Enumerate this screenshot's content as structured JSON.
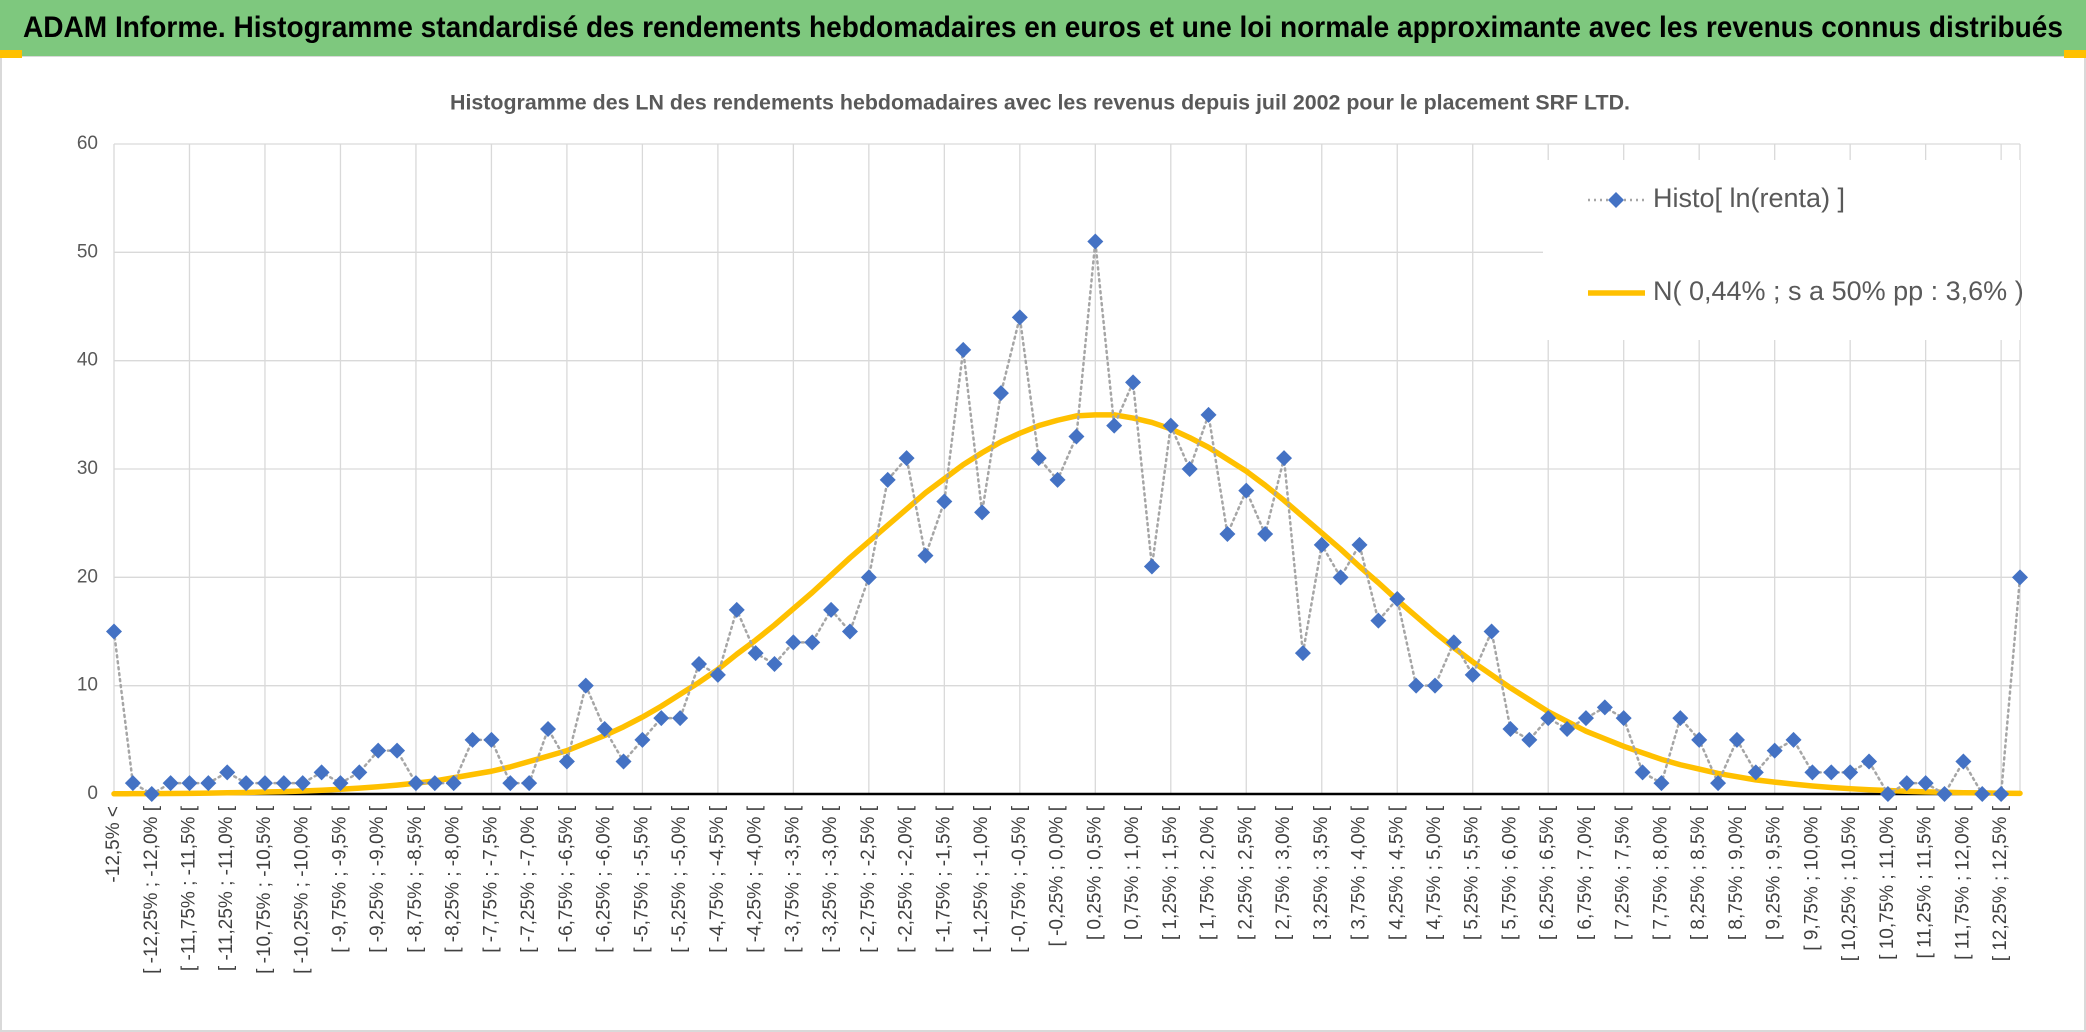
{
  "chart_data": {
    "type": "line",
    "header": "ADAM Informe. Histogramme standardisé des rendements hebdomadaires en euros et une loi normale approximante avec les revenus connus distribués",
    "title": "Histogramme des LN des rendements hebdomadaires avec les revenus depuis juil 2002 pour le placement SRF LTD.",
    "categories": [
      "-12,5% <",
      null,
      "[ -12,25% ; -12,0% [",
      null,
      "[ -11,75% ; -11,5% [",
      null,
      "[ -11,25% ; -11,0% [",
      null,
      "[ -10,75% ; -10,5% [",
      null,
      "[ -10,25% ; -10,0% [",
      null,
      "[ -9,75% ; -9,5% [",
      null,
      "[ -9,25% ; -9,0% [",
      null,
      "[ -8,75% ; -8,5% [",
      null,
      "[ -8,25% ; -8,0% [",
      null,
      "[ -7,75% ; -7,5% [",
      null,
      "[ -7,25% ; -7,0% [",
      null,
      "[ -6,75% ; -6,5% [",
      null,
      "[ -6,25% ; -6,0% [",
      null,
      "[ -5,75% ; -5,5% [",
      null,
      "[ -5,25% ; -5,0% [",
      null,
      "[ -4,75% ; -4,5% [",
      null,
      "[ -4,25% ; -4,0% [",
      null,
      "[ -3,75% ; -3,5% [",
      null,
      "[ -3,25% ; -3,0% [",
      null,
      "[ -2,75% ; -2,5% [",
      null,
      "[ -2,25% ; -2,0% [",
      null,
      "[ -1,75% ; -1,5% [",
      null,
      "[ -1,25% ; -1,0% [",
      null,
      "[ -0,75% ; -0,5% [",
      null,
      "[ -0,25% ; 0,0% [",
      null,
      "[ 0,25% ; 0,5% [",
      null,
      "[ 0,75% ; 1,0% [",
      null,
      "[ 1,25% ; 1,5% [",
      null,
      "[ 1,75% ; 2,0% [",
      null,
      "[ 2,25% ; 2,5% [",
      null,
      "[ 2,75% ; 3,0% [",
      null,
      "[ 3,25% ; 3,5% [",
      null,
      "[ 3,75% ; 4,0% [",
      null,
      "[ 4,25% ; 4,5% [",
      null,
      "[ 4,75% ; 5,0% [",
      null,
      "[ 5,25% ; 5,5% [",
      null,
      "[ 5,75% ; 6,0% [",
      null,
      "[ 6,25% ; 6,5% [",
      null,
      "[ 6,75% ; 7,0% [",
      null,
      "[ 7,25% ; 7,5% [",
      null,
      "[ 7,75% ; 8,0% [",
      null,
      "[ 8,25% ; 8,5% [",
      null,
      "[ 8,75% ; 9,0% [",
      null,
      "[ 9,25% ; 9,5% [",
      null,
      "[ 9,75% ; 10,0% [",
      null,
      "[ 10,25% ; 10,5% [",
      null,
      "[ 10,75% ; 11,0% [",
      null,
      "[ 11,25% ; 11,5% [",
      null,
      "[ 11,75% ; 12,0% [",
      null,
      "[ 12,25% ; 12,5% [",
      null
    ],
    "series": [
      {
        "name": "Histo[ ln(renta) ]",
        "color": "#4472c4",
        "line_color": "#a6a6a6",
        "dash": "dotted",
        "marker": "diamond",
        "values": [
          15,
          1,
          0,
          1,
          1,
          1,
          2,
          1,
          1,
          1,
          1,
          2,
          1,
          2,
          4,
          4,
          1,
          1,
          1,
          5,
          5,
          1,
          1,
          6,
          3,
          10,
          6,
          3,
          5,
          7,
          7,
          12,
          11,
          17,
          13,
          12,
          14,
          14,
          17,
          15,
          20,
          29,
          31,
          22,
          27,
          41,
          26,
          37,
          44,
          31,
          29,
          33,
          51,
          34,
          38,
          21,
          34,
          30,
          35,
          24,
          28,
          24,
          31,
          13,
          23,
          20,
          23,
          16,
          18,
          10,
          10,
          14,
          11,
          15,
          6,
          5,
          7,
          6,
          7,
          8,
          7,
          2,
          1,
          7,
          5,
          1,
          5,
          2,
          4,
          5,
          2,
          2,
          2,
          3,
          0,
          1,
          1,
          0,
          3,
          0,
          0,
          20
        ]
      },
      {
        "name": "N( 0,44% ; s a 50% pp : 3,6% )",
        "color": "#ffc000",
        "values": [
          0.02,
          0.03,
          0.04,
          0.05,
          0.06,
          0.08,
          0.11,
          0.14,
          0.18,
          0.22,
          0.28,
          0.35,
          0.44,
          0.54,
          0.67,
          0.82,
          1.0,
          1.2,
          1.5,
          1.8,
          2.1,
          2.5,
          3.0,
          3.5,
          4.0,
          4.7,
          5.4,
          6.2,
          7.1,
          8.1,
          9.2,
          10.3,
          11.5,
          12.9,
          14.2,
          15.6,
          17.1,
          18.6,
          20.2,
          21.8,
          23.3,
          24.8,
          26.3,
          27.8,
          29.1,
          30.4,
          31.5,
          32.5,
          33.3,
          34.0,
          34.5,
          34.9,
          35.0,
          35.0,
          34.7,
          34.3,
          33.7,
          32.9,
          32.0,
          30.9,
          29.8,
          28.5,
          27.1,
          25.6,
          24.1,
          22.6,
          21.0,
          19.5,
          17.9,
          16.4,
          14.9,
          13.5,
          12.2,
          11.0,
          9.8,
          8.7,
          7.6,
          6.7,
          5.8,
          5.1,
          4.4,
          3.8,
          3.2,
          2.7,
          2.3,
          1.9,
          1.6,
          1.3,
          1.1,
          0.91,
          0.74,
          0.6,
          0.49,
          0.39,
          0.32,
          0.25,
          0.2,
          0.16,
          0.12,
          0.1,
          0.07,
          0.06
        ]
      }
    ],
    "ylim": [
      0,
      60
    ],
    "yticks": [
      0,
      10,
      20,
      30,
      40,
      50,
      60
    ],
    "grid": true,
    "legend": "top-right"
  }
}
